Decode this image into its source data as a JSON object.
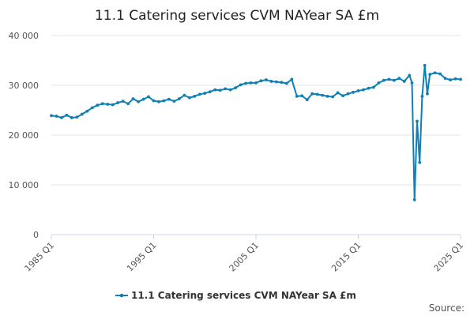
{
  "chart_data": {
    "type": "line",
    "title": "11.1 Catering services CVM NAYear SA £m",
    "xlabel": "",
    "ylabel": "",
    "ylim": [
      0,
      40000
    ],
    "yticks": [
      0,
      10000,
      20000,
      30000,
      40000
    ],
    "ytick_labels": [
      "0",
      "10 000",
      "20 000",
      "30 000",
      "40 000"
    ],
    "xlim": [
      1985.0,
      2025.0
    ],
    "xtick_labels": [
      "1985 Q1",
      "1995 Q1",
      "2005 Q1",
      "2015 Q1",
      "2025 Q1"
    ],
    "xtick_values": [
      1985.0,
      1995.0,
      2005.0,
      2015.0,
      2025.0
    ],
    "grid": true,
    "legend_position": "bottom",
    "series": [
      {
        "name": "11.1 Catering services CVM NAYear SA £m",
        "color": "#0f7fb4",
        "x": [
          1985.0,
          1985.5,
          1986.0,
          1986.5,
          1987.0,
          1987.5,
          1988.0,
          1988.5,
          1989.0,
          1989.5,
          1990.0,
          1990.5,
          1991.0,
          1991.5,
          1992.0,
          1992.5,
          1993.0,
          1993.5,
          1994.0,
          1994.5,
          1995.0,
          1995.5,
          1996.0,
          1996.5,
          1997.0,
          1997.5,
          1998.0,
          1998.5,
          1999.0,
          1999.5,
          2000.0,
          2000.5,
          2001.0,
          2001.5,
          2002.0,
          2002.5,
          2003.0,
          2003.5,
          2004.0,
          2004.5,
          2005.0,
          2005.5,
          2006.0,
          2006.5,
          2007.0,
          2007.5,
          2008.0,
          2008.5,
          2009.0,
          2009.5,
          2010.0,
          2010.5,
          2011.0,
          2011.5,
          2012.0,
          2012.5,
          2013.0,
          2013.5,
          2014.0,
          2014.5,
          2015.0,
          2015.5,
          2016.0,
          2016.5,
          2017.0,
          2017.5,
          2018.0,
          2018.5,
          2019.0,
          2019.5,
          2020.0,
          2020.25,
          2020.5,
          2020.75,
          2021.0,
          2021.25,
          2021.5,
          2021.75,
          2022.0,
          2022.5,
          2023.0,
          2023.5,
          2024.0,
          2024.5,
          2025.0
        ],
        "values": [
          23900,
          23800,
          23500,
          24000,
          23500,
          23600,
          24200,
          24800,
          25500,
          26000,
          26300,
          26200,
          26100,
          26500,
          26800,
          26300,
          27300,
          26700,
          27200,
          27700,
          26900,
          26700,
          26900,
          27200,
          26800,
          27300,
          28000,
          27500,
          27800,
          28200,
          28400,
          28700,
          29100,
          29000,
          29300,
          29100,
          29500,
          30100,
          30400,
          30500,
          30500,
          30900,
          31100,
          30800,
          30700,
          30600,
          30400,
          31200,
          27800,
          27900,
          27100,
          28300,
          28200,
          28000,
          27800,
          27700,
          28500,
          27900,
          28300,
          28600,
          28900,
          29100,
          29400,
          29600,
          30500,
          31000,
          31200,
          31000,
          31400,
          30800,
          32000,
          30500,
          7000,
          22800,
          14500,
          27800,
          34000,
          28300,
          32200,
          32500,
          32300,
          31400,
          31100,
          31300,
          31200
        ]
      }
    ],
    "source_label": "Source:"
  }
}
